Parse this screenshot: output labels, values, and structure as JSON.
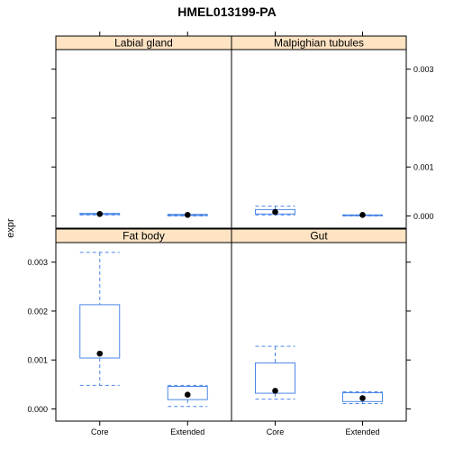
{
  "chart_data": {
    "type": "boxplot",
    "title": "HMEL013199-PA",
    "ylabel": "expr",
    "xlabel": "",
    "categories": [
      "Core",
      "Extended"
    ],
    "ylim": [
      -0.00025,
      0.0034
    ],
    "yticks": [
      0.0,
      0.001,
      0.002,
      0.003
    ],
    "ytick_labels": [
      "0.000",
      "0.001",
      "0.002",
      "0.003"
    ],
    "colors": {
      "box": "#4a86e8",
      "point": "#000000",
      "strip": "#ffe4c4",
      "frame": "#000000"
    },
    "panels": [
      {
        "name": "Fat body",
        "boxes": [
          {
            "category": "Core",
            "whisker_low": 0.00048,
            "q1": 0.00104,
            "median": 0.00113,
            "q3": 0.00213,
            "whisker_high": 0.0032
          },
          {
            "category": "Extended",
            "whisker_low": 5e-05,
            "q1": 0.00019,
            "median": 0.00029,
            "q3": 0.00046,
            "whisker_high": 0.00048
          }
        ]
      },
      {
        "name": "Gut",
        "boxes": [
          {
            "category": "Core",
            "whisker_low": 0.0002,
            "q1": 0.00032,
            "median": 0.00037,
            "q3": 0.00094,
            "whisker_high": 0.00128
          },
          {
            "category": "Extended",
            "whisker_low": 0.00011,
            "q1": 0.00015,
            "median": 0.00022,
            "q3": 0.00033,
            "whisker_high": 0.00035
          }
        ]
      },
      {
        "name": "Labial gland",
        "boxes": [
          {
            "category": "Core",
            "whisker_low": 2e-05,
            "q1": 3e-05,
            "median": 4e-05,
            "q3": 5e-05,
            "whisker_high": 5e-05
          },
          {
            "category": "Extended",
            "whisker_low": 0.0,
            "q1": 1e-05,
            "median": 2e-05,
            "q3": 3e-05,
            "whisker_high": 3e-05
          }
        ]
      },
      {
        "name": "Malpighian tubules",
        "boxes": [
          {
            "category": "Core",
            "whisker_low": 2e-05,
            "q1": 4e-05,
            "median": 8e-05,
            "q3": 0.00013,
            "whisker_high": 0.0002
          },
          {
            "category": "Extended",
            "whisker_low": 0.0,
            "q1": 1e-05,
            "median": 2e-05,
            "q3": 2e-05,
            "whisker_high": 2e-05
          }
        ]
      }
    ]
  }
}
